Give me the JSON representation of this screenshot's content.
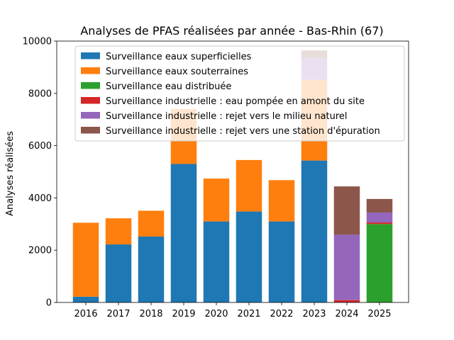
{
  "chart_data": {
    "type": "bar",
    "stacked": true,
    "title": "Analyses de PFAS réalisées par année - Bas-Rhin (67)",
    "xlabel": "",
    "ylabel": "Analyses réalisées",
    "ylim": [
      0,
      10000
    ],
    "yticks": [
      0,
      2000,
      4000,
      6000,
      8000,
      10000
    ],
    "categories": [
      "2016",
      "2017",
      "2018",
      "2019",
      "2020",
      "2021",
      "2022",
      "2023",
      "2024",
      "2025"
    ],
    "legend_position": "top-left",
    "series": [
      {
        "name": "Surveillance eaux superficielles",
        "color": "#1f77b4",
        "values": [
          220,
          2220,
          2520,
          5300,
          3100,
          3480,
          3100,
          5430,
          0,
          0
        ]
      },
      {
        "name": "Surveillance eaux souterraines",
        "color": "#ff7f0e",
        "values": [
          2830,
          1000,
          990,
          2100,
          1640,
          1970,
          1580,
          3090,
          0,
          0
        ]
      },
      {
        "name": "Surveillance eau distribuée",
        "color": "#2ca02c",
        "values": [
          0,
          0,
          0,
          0,
          0,
          0,
          0,
          0,
          0,
          3000
        ]
      },
      {
        "name": "Surveillance industrielle : eau pompée en amont du site",
        "color": "#d62728",
        "values": [
          0,
          0,
          0,
          0,
          0,
          0,
          0,
          0,
          90,
          60
        ]
      },
      {
        "name": "Surveillance industrielle : rejet vers le milieu naturel",
        "color": "#9467bd",
        "values": [
          0,
          0,
          0,
          0,
          0,
          0,
          0,
          830,
          2500,
          380
        ]
      },
      {
        "name": "Surveillance industrielle : rejet vers une station d'épuration",
        "color": "#8c564b",
        "values": [
          0,
          0,
          0,
          0,
          0,
          0,
          0,
          290,
          1850,
          520
        ]
      }
    ]
  }
}
